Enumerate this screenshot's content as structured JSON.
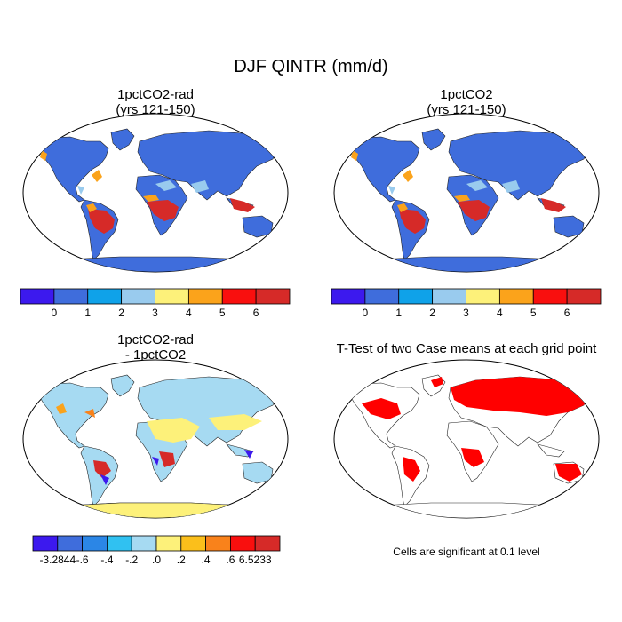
{
  "title": "DJF QINTR (mm/d)",
  "panels": [
    {
      "id": "p1",
      "title_lines": [
        "1pctCO2-rad",
        "(yrs 121-150)"
      ],
      "kind": "absolute"
    },
    {
      "id": "p2",
      "title_lines": [
        "1pctCO2",
        "(yrs 121-150)"
      ],
      "kind": "absolute"
    },
    {
      "id": "p3",
      "title_lines": [
        "1pctCO2-rad",
        "- 1pctCO2"
      ],
      "kind": "difference"
    },
    {
      "id": "p4",
      "title_lines": [
        "T-Test of two Case means at each grid point"
      ],
      "kind": "significance"
    }
  ],
  "colorbar_abs": {
    "colors": [
      "#3c19ee",
      "#3f6ddc",
      "#0fa2e9",
      "#99cbee",
      "#fdf17a",
      "#fba31b",
      "#f90f0e",
      "#d62a28"
    ],
    "labels": [
      "0",
      "1",
      "2",
      "3",
      "4",
      "5",
      "6"
    ]
  },
  "colorbar_diff": {
    "colors": [
      "#3c19ee",
      "#3f6ddc",
      "#2b86e6",
      "#30c1f1",
      "#a6daf2",
      "#fdf17a",
      "#fbbf1b",
      "#f9821b",
      "#f90f0e",
      "#d62a28"
    ],
    "labels": [
      "-3.2844",
      "-.6",
      "-.4",
      "-.2",
      ".0",
      ".2",
      ".4",
      ".6",
      "6.5233"
    ]
  },
  "significance_color": "#ff0000",
  "significance_note": "Cells are significant at 0.1 level"
}
